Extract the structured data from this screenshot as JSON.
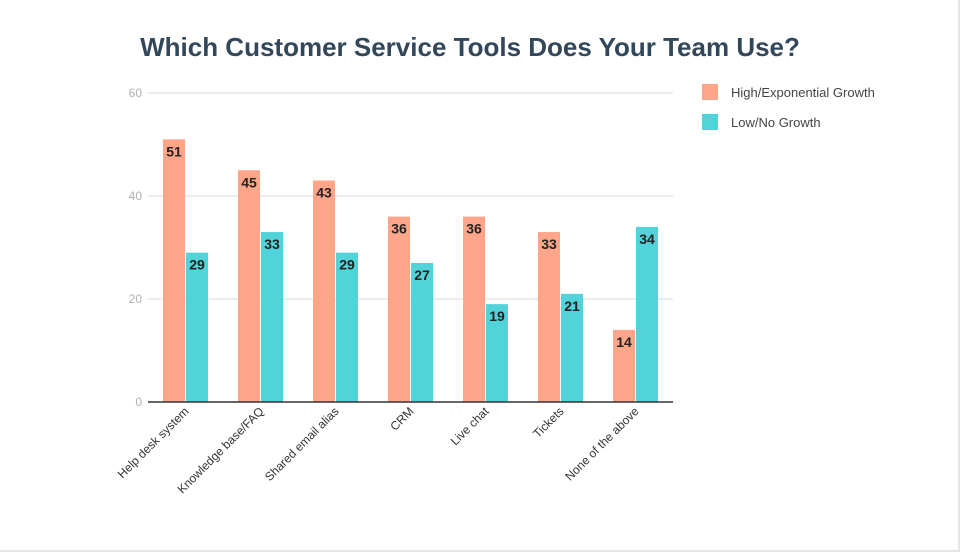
{
  "chart_data": {
    "type": "bar",
    "title": "Which Customer Service Tools Does Your Team Use?",
    "categories": [
      "Help desk system",
      "Knowledge base/FAQ",
      "Shared email alias",
      "CRM",
      "Live chat",
      "Tickets",
      "None of the above"
    ],
    "series": [
      {
        "name": "High/Exponential Growth",
        "color": "#fea58a",
        "values": [
          51,
          45,
          43,
          36,
          36,
          33,
          14
        ]
      },
      {
        "name": "Low/No Growth",
        "color": "#51d3d9",
        "values": [
          29,
          33,
          29,
          27,
          19,
          21,
          34
        ]
      }
    ],
    "ylim": [
      0,
      60
    ],
    "yticks": [
      0,
      20,
      40,
      60
    ],
    "grid": true,
    "legend": "top-right",
    "data_labels": true,
    "title_color": "#33475b"
  }
}
